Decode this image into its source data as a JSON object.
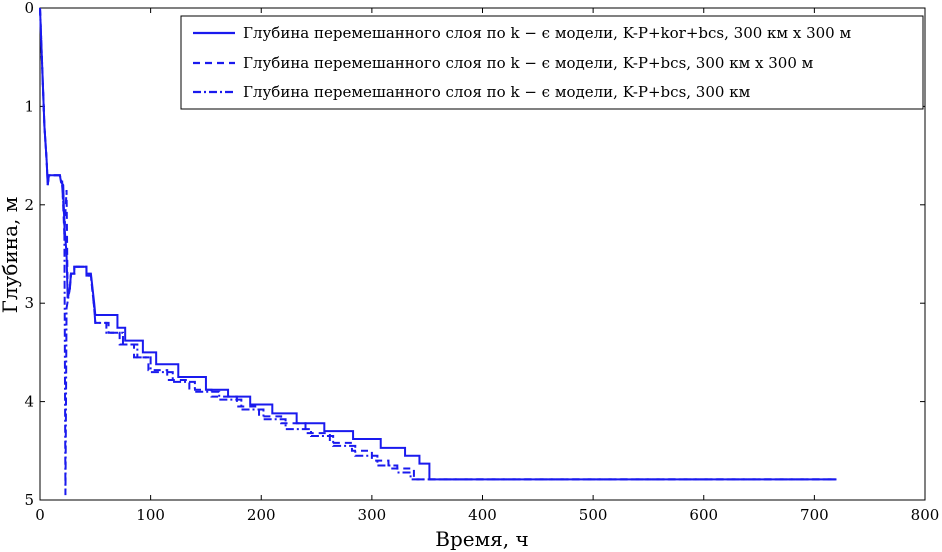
{
  "chart_data": {
    "type": "line",
    "xlabel": "Время, ч",
    "ylabel": "Глубина, м",
    "xlim": [
      0,
      800
    ],
    "ylim": [
      0,
      5
    ],
    "y_inverted": true,
    "grid": false,
    "legend_placement": "top-right",
    "xticks": [
      "0",
      "100",
      "200",
      "300",
      "400",
      "500",
      "600",
      "700",
      "800"
    ],
    "yticks": [
      "0",
      "1",
      "2",
      "3",
      "4",
      "5"
    ],
    "color": "#1a1aee",
    "series": [
      {
        "name": "Глубина перемешанного слоя по k − ϵ модели, K-P+kor+bcs, 300 км x 300 м",
        "style": "solid",
        "points": [
          [
            0,
            0
          ],
          [
            2,
            0.6
          ],
          [
            4,
            1.2
          ],
          [
            6,
            1.55
          ],
          [
            7,
            1.8
          ],
          [
            8,
            1.7
          ],
          [
            18,
            1.7
          ],
          [
            19,
            1.77
          ],
          [
            21,
            1.8
          ],
          [
            22,
            2.2
          ],
          [
            24,
            2.5
          ],
          [
            25,
            2.95
          ],
          [
            27,
            2.85
          ],
          [
            28,
            2.7
          ],
          [
            31,
            2.7
          ],
          [
            31,
            2.63
          ],
          [
            42,
            2.63
          ],
          [
            42,
            2.7
          ],
          [
            46,
            2.7
          ],
          [
            49,
            3.0
          ],
          [
            50,
            3.12
          ],
          [
            70,
            3.12
          ],
          [
            70,
            3.25
          ],
          [
            77,
            3.25
          ],
          [
            77,
            3.38
          ],
          [
            93,
            3.38
          ],
          [
            93,
            3.5
          ],
          [
            105,
            3.5
          ],
          [
            105,
            3.62
          ],
          [
            125,
            3.62
          ],
          [
            125,
            3.75
          ],
          [
            150,
            3.75
          ],
          [
            150,
            3.88
          ],
          [
            170,
            3.88
          ],
          [
            170,
            3.95
          ],
          [
            190,
            3.95
          ],
          [
            190,
            4.03
          ],
          [
            210,
            4.03
          ],
          [
            210,
            4.12
          ],
          [
            232,
            4.12
          ],
          [
            232,
            4.22
          ],
          [
            257,
            4.22
          ],
          [
            257,
            4.3
          ],
          [
            283,
            4.3
          ],
          [
            283,
            4.38
          ],
          [
            308,
            4.38
          ],
          [
            308,
            4.47
          ],
          [
            330,
            4.47
          ],
          [
            330,
            4.55
          ],
          [
            343,
            4.55
          ],
          [
            343,
            4.63
          ],
          [
            352,
            4.63
          ],
          [
            352,
            4.79
          ],
          [
            720,
            4.79
          ]
        ]
      },
      {
        "name": "Глубина перемешанного слоя по k − ϵ модели, K-P+bcs, 300 км x 300 м",
        "style": "dashed",
        "points": [
          [
            0,
            0
          ],
          [
            2,
            0.6
          ],
          [
            4,
            1.2
          ],
          [
            6,
            1.55
          ],
          [
            7,
            1.8
          ],
          [
            8,
            1.7
          ],
          [
            18,
            1.7
          ],
          [
            20,
            1.75
          ],
          [
            22,
            2.3
          ],
          [
            24,
            1.85
          ],
          [
            25,
            2.95
          ],
          [
            27,
            2.85
          ],
          [
            28,
            2.7
          ],
          [
            31,
            2.7
          ],
          [
            31,
            2.63
          ],
          [
            42,
            2.63
          ],
          [
            42,
            2.72
          ],
          [
            46,
            2.72
          ],
          [
            49,
            3.05
          ],
          [
            50,
            3.2
          ],
          [
            62,
            3.2
          ],
          [
            62,
            3.3
          ],
          [
            72,
            3.3
          ],
          [
            72,
            3.42
          ],
          [
            85,
            3.42
          ],
          [
            85,
            3.55
          ],
          [
            98,
            3.55
          ],
          [
            98,
            3.68
          ],
          [
            115,
            3.68
          ],
          [
            115,
            3.78
          ],
          [
            135,
            3.78
          ],
          [
            135,
            3.88
          ],
          [
            155,
            3.88
          ],
          [
            155,
            3.95
          ],
          [
            178,
            3.95
          ],
          [
            178,
            4.05
          ],
          [
            198,
            4.05
          ],
          [
            198,
            4.15
          ],
          [
            218,
            4.15
          ],
          [
            218,
            4.22
          ],
          [
            240,
            4.22
          ],
          [
            240,
            4.32
          ],
          [
            262,
            4.32
          ],
          [
            262,
            4.42
          ],
          [
            282,
            4.42
          ],
          [
            282,
            4.5
          ],
          [
            300,
            4.5
          ],
          [
            300,
            4.6
          ],
          [
            315,
            4.6
          ],
          [
            315,
            4.68
          ],
          [
            338,
            4.68
          ],
          [
            338,
            4.79
          ],
          [
            720,
            4.79
          ]
        ]
      },
      {
        "name": "Глубина перемешанного слоя по k − ϵ модели, K-P+bcs, 300 км",
        "style": "dashdot",
        "points": [
          [
            0,
            0
          ],
          [
            2,
            0.6
          ],
          [
            4,
            1.2
          ],
          [
            6,
            1.55
          ],
          [
            7,
            1.8
          ],
          [
            8,
            1.7
          ],
          [
            18,
            1.7
          ],
          [
            20,
            1.8
          ],
          [
            22,
            2.15
          ],
          [
            23,
            4.95
          ],
          [
            24,
            3.05
          ],
          [
            27,
            2.85
          ],
          [
            28,
            2.7
          ],
          [
            31,
            2.7
          ],
          [
            31,
            2.63
          ],
          [
            42,
            2.63
          ],
          [
            42,
            2.72
          ],
          [
            46,
            2.72
          ],
          [
            49,
            3.05
          ],
          [
            50,
            3.2
          ],
          [
            60,
            3.2
          ],
          [
            60,
            3.3
          ],
          [
            75,
            3.3
          ],
          [
            75,
            3.42
          ],
          [
            88,
            3.42
          ],
          [
            88,
            3.55
          ],
          [
            100,
            3.55
          ],
          [
            100,
            3.7
          ],
          [
            120,
            3.7
          ],
          [
            120,
            3.8
          ],
          [
            140,
            3.8
          ],
          [
            140,
            3.9
          ],
          [
            162,
            3.9
          ],
          [
            162,
            3.98
          ],
          [
            182,
            3.98
          ],
          [
            182,
            4.08
          ],
          [
            202,
            4.08
          ],
          [
            202,
            4.18
          ],
          [
            222,
            4.18
          ],
          [
            222,
            4.28
          ],
          [
            245,
            4.28
          ],
          [
            245,
            4.35
          ],
          [
            265,
            4.35
          ],
          [
            265,
            4.45
          ],
          [
            285,
            4.45
          ],
          [
            285,
            4.55
          ],
          [
            305,
            4.55
          ],
          [
            305,
            4.65
          ],
          [
            323,
            4.65
          ],
          [
            323,
            4.72
          ],
          [
            335,
            4.72
          ],
          [
            335,
            4.79
          ],
          [
            720,
            4.79
          ]
        ]
      }
    ]
  }
}
